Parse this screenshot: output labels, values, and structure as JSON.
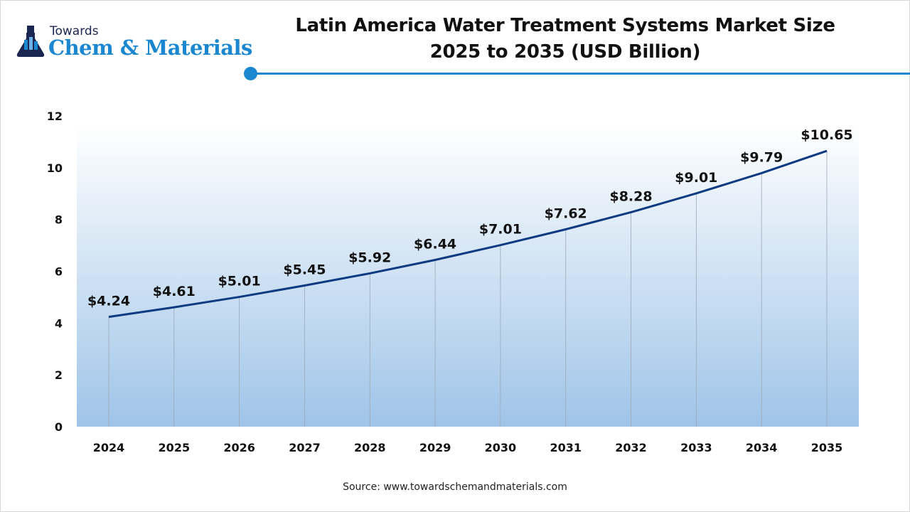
{
  "logo": {
    "line1": "Towards",
    "line2": "Chem & Materials"
  },
  "title_lines": [
    "Latin America Water Treatment Systems Market Size",
    "2025 to 2035 (USD Billion)"
  ],
  "source": "Source: www.towardschemandmaterials.com",
  "colors": {
    "accent": "#1a87d0",
    "line": "#0d3a80",
    "fill_top": "#ffffff",
    "fill_bottom": "#9fc4e8"
  },
  "chart_data": {
    "type": "area",
    "title": "Latin America Water Treatment Systems Market Size 2025 to 2035 (USD Billion)",
    "categories": [
      "2024",
      "2025",
      "2026",
      "2027",
      "2028",
      "2029",
      "2030",
      "2031",
      "2032",
      "2033",
      "2034",
      "2035"
    ],
    "values": [
      4.24,
      4.61,
      5.01,
      5.45,
      5.92,
      6.44,
      7.01,
      7.62,
      8.28,
      9.01,
      9.79,
      10.65
    ],
    "data_labels": [
      "$4.24",
      "$4.61",
      "$5.01",
      "$5.45",
      "$5.92",
      "$6.44",
      "$7.01",
      "$7.62",
      "$8.28",
      "$9.01",
      "$9.79",
      "$10.65"
    ],
    "ylim": [
      0,
      12
    ],
    "yticks": [
      0,
      2,
      4,
      6,
      8,
      10,
      12
    ],
    "xlabel": "",
    "ylabel": "",
    "grid": false,
    "legend": "none"
  }
}
